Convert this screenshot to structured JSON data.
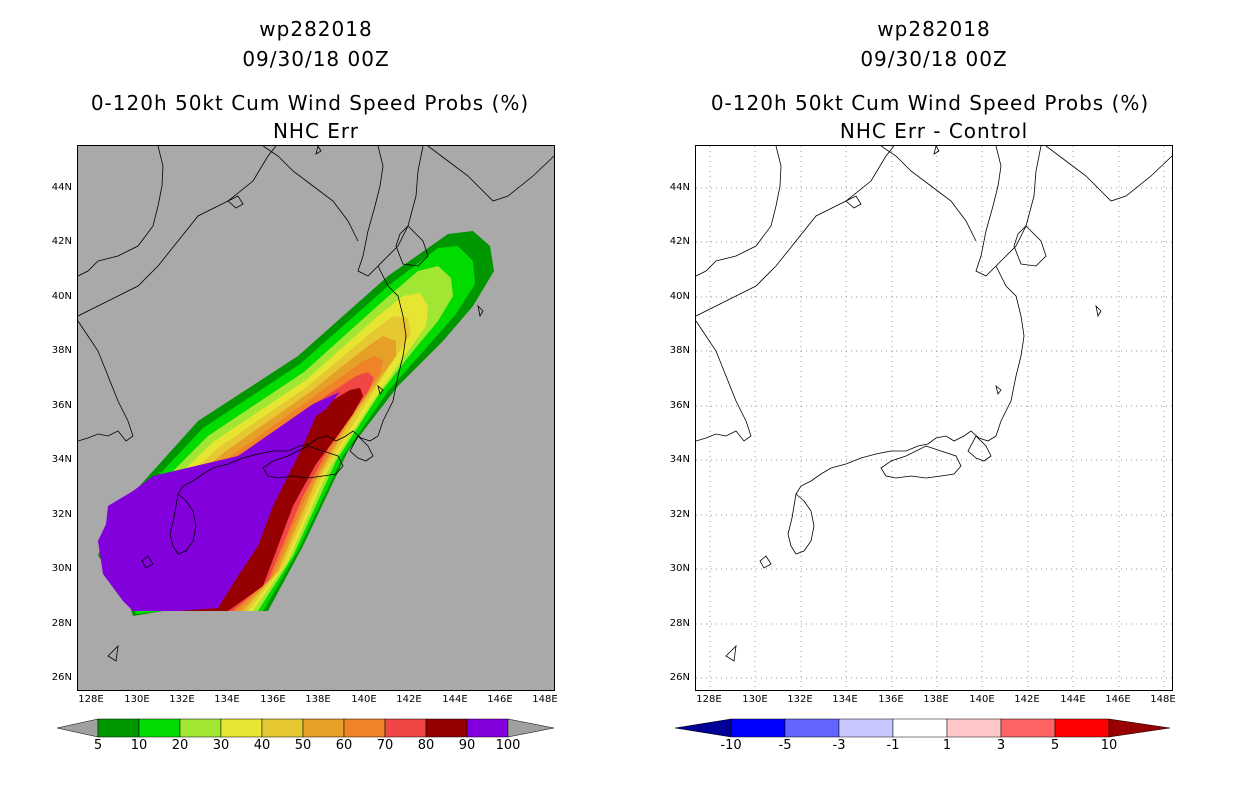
{
  "left_panel": {
    "title_line1": "wp282018",
    "title_line2": "09/30/18 00Z",
    "title_line3": "0-120h 50kt Cum Wind Speed Probs (%)",
    "title_line4": "NHC Err",
    "background_color": "#a9a9a9"
  },
  "right_panel": {
    "title_line1": "wp282018",
    "title_line2": "09/30/18 00Z",
    "title_line3": "0-120h 50kt Cum Wind Speed Probs (%)",
    "title_line4": "NHC Err - Control",
    "background_color": "#ffffff"
  },
  "axes": {
    "lat_labels": [
      "44N",
      "42N",
      "40N",
      "38N",
      "36N",
      "34N",
      "32N",
      "30N",
      "28N",
      "26N"
    ],
    "lon_labels": [
      "128E",
      "130E",
      "132E",
      "134E",
      "136E",
      "138E",
      "140E",
      "142E",
      "144E",
      "146E",
      "148E"
    ]
  },
  "left_colorbar": {
    "labels": [
      "5",
      "10",
      "20",
      "30",
      "40",
      "50",
      "60",
      "70",
      "80",
      "90",
      "100"
    ],
    "colors": [
      "#a0a0a0",
      "#009600",
      "#00dc00",
      "#a0e632",
      "#e6e632",
      "#e6c832",
      "#e6a028",
      "#f08228",
      "#f04646",
      "#960000",
      "#8200dc",
      "#a0a0a0"
    ]
  },
  "right_colorbar": {
    "labels": [
      "-10",
      "-5",
      "-3",
      "-1",
      "1",
      "3",
      "5",
      "10"
    ],
    "colors": [
      "#000096",
      "#0000ff",
      "#6464ff",
      "#c8c8ff",
      "#ffffff",
      "#ffc8c8",
      "#ff6464",
      "#ff0000",
      "#960000"
    ]
  }
}
